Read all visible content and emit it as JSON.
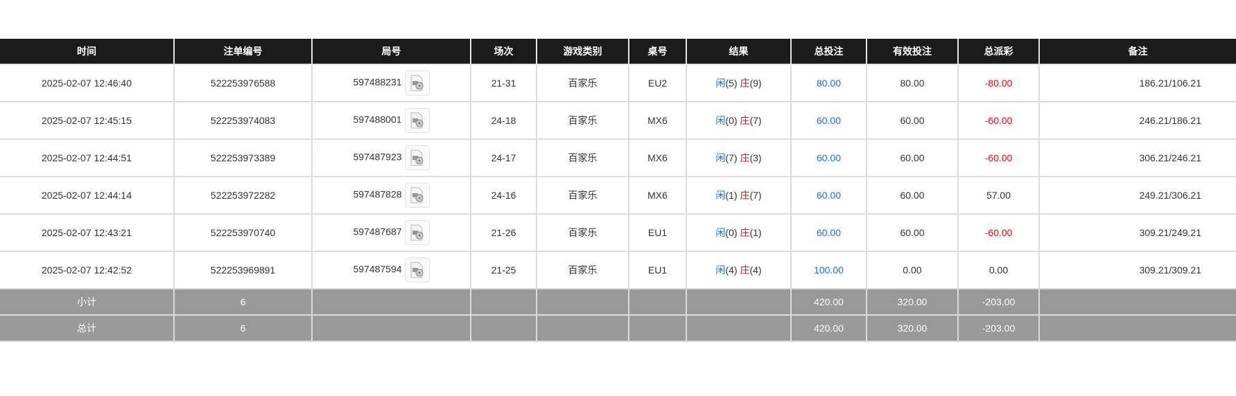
{
  "headers": [
    "时间",
    "注单编号",
    "局号",
    "场次",
    "游戏类别",
    "桌号",
    "结果",
    "总投注",
    "有效投注",
    "总派彩",
    "备注"
  ],
  "colors": {
    "header_bg": "#1b1b1b",
    "player": "#1a6cff",
    "banker": "#ff0000",
    "bet": "#1a6cff",
    "loss": "#ff0000",
    "summary_bg": "#999999"
  },
  "rows": [
    {
      "time": "2025-02-07 12:46:40",
      "bet_no": "522253976588",
      "round": "597488231",
      "shoe": "21-31",
      "game": "百家乐",
      "table": "EU2",
      "player_label": "闲",
      "player_score": "(5)",
      "banker_label": "庄",
      "banker_score": "(9)",
      "total_bet": "80.00",
      "valid_bet": "80.00",
      "payout": "-80.00",
      "payout_negative": true,
      "remark": "186.21/106.21"
    },
    {
      "time": "2025-02-07 12:45:15",
      "bet_no": "522253974083",
      "round": "597488001",
      "shoe": "24-18",
      "game": "百家乐",
      "table": "MX6",
      "player_label": "闲",
      "player_score": "(0)",
      "banker_label": "庄",
      "banker_score": "(7)",
      "total_bet": "60.00",
      "valid_bet": "60.00",
      "payout": "-60.00",
      "payout_negative": true,
      "remark": "246.21/186.21"
    },
    {
      "time": "2025-02-07 12:44:51",
      "bet_no": "522253973389",
      "round": "597487923",
      "shoe": "24-17",
      "game": "百家乐",
      "table": "MX6",
      "player_label": "闲",
      "player_score": "(7)",
      "banker_label": "庄",
      "banker_score": "(3)",
      "total_bet": "60.00",
      "valid_bet": "60.00",
      "payout": "-60.00",
      "payout_negative": true,
      "remark": "306.21/246.21"
    },
    {
      "time": "2025-02-07 12:44:14",
      "bet_no": "522253972282",
      "round": "597487828",
      "shoe": "24-16",
      "game": "百家乐",
      "table": "MX6",
      "player_label": "闲",
      "player_score": "(1)",
      "banker_label": "庄",
      "banker_score": "(7)",
      "total_bet": "60.00",
      "valid_bet": "60.00",
      "payout": "57.00",
      "payout_negative": false,
      "remark": "249.21/306.21"
    },
    {
      "time": "2025-02-07 12:43:21",
      "bet_no": "522253970740",
      "round": "597487687",
      "shoe": "21-26",
      "game": "百家乐",
      "table": "EU1",
      "player_label": "闲",
      "player_score": "(0)",
      "banker_label": "庄",
      "banker_score": "(1)",
      "total_bet": "60.00",
      "valid_bet": "60.00",
      "payout": "-60.00",
      "payout_negative": true,
      "remark": "309.21/249.21"
    },
    {
      "time": "2025-02-07 12:42:52",
      "bet_no": "522253969891",
      "round": "597487594",
      "shoe": "21-25",
      "game": "百家乐",
      "table": "EU1",
      "player_label": "闲",
      "player_score": "(4)",
      "banker_label": "庄",
      "banker_score": "(4)",
      "total_bet": "100.00",
      "valid_bet": "0.00",
      "payout": "0.00",
      "payout_negative": false,
      "remark": "309.21/309.21"
    }
  ],
  "subtotal": {
    "label": "小计",
    "count": "6",
    "total_bet": "420.00",
    "valid_bet": "320.00",
    "payout": "-203.00"
  },
  "total": {
    "label": "总计",
    "count": "6",
    "total_bet": "420.00",
    "valid_bet": "320.00",
    "payout": "-203.00"
  },
  "icons": {
    "replay": "video-file-icon"
  }
}
